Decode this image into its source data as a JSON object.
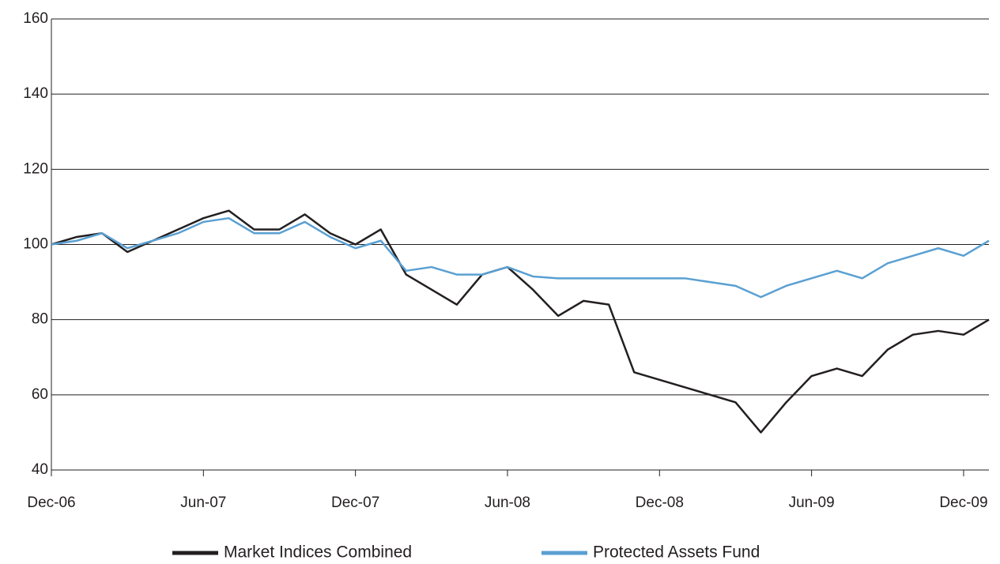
{
  "chart_data": {
    "type": "line",
    "categories": [
      "Dec-06",
      null,
      null,
      null,
      null,
      null,
      "Jun-07",
      null,
      null,
      null,
      null,
      null,
      "Dec-07",
      null,
      null,
      null,
      null,
      null,
      "Jun-08",
      null,
      null,
      null,
      null,
      null,
      "Dec-08",
      null,
      null,
      null,
      null,
      null,
      "Jun-09",
      null,
      null,
      null,
      null,
      null,
      "Dec-09",
      null
    ],
    "series": [
      {
        "name": "Market Indices Combined",
        "color": "#231f20",
        "values": [
          100,
          102,
          103,
          98,
          101,
          104,
          107,
          109,
          104,
          104,
          108,
          103,
          100,
          104,
          92,
          88,
          84,
          92,
          94,
          88,
          81,
          85,
          84,
          66,
          64,
          62,
          60,
          58,
          50,
          58,
          65,
          67,
          65,
          72,
          76,
          77,
          76,
          80
        ]
      },
      {
        "name": "Protected Assets Fund",
        "color": "#5aa0d2",
        "values": [
          100,
          101,
          103,
          99,
          101,
          103,
          106,
          107,
          103,
          103,
          106,
          102,
          99,
          101,
          93,
          94,
          92,
          92,
          94,
          91.5,
          91,
          91,
          91,
          91,
          91,
          91,
          90,
          89,
          86,
          89,
          91,
          93,
          91,
          95,
          97,
          99,
          97,
          101
        ]
      }
    ],
    "ylim": [
      40,
      160
    ],
    "yticks": [
      40,
      60,
      80,
      100,
      120,
      140,
      160
    ],
    "grid": true
  }
}
